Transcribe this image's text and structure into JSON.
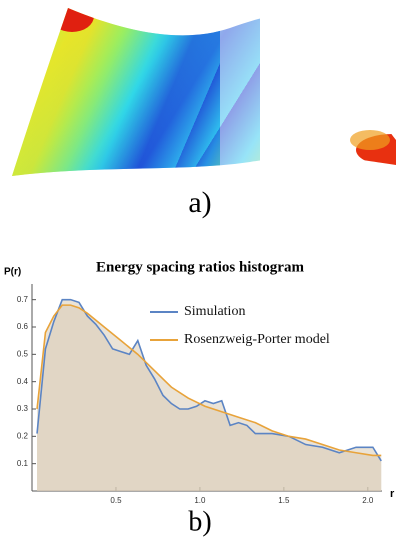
{
  "figure_a": {
    "label": "a)"
  },
  "chart_data": {
    "type": "line",
    "title": "Energy spacing ratios histogram",
    "panel_label": "b)",
    "y_label": "P(r)",
    "x_label": "r",
    "xlim": [
      0,
      2.15
    ],
    "ylim": [
      0,
      0.75
    ],
    "xticks": [
      0.5,
      {
        "value": 1,
        "label": "1.0"
      },
      1.5,
      {
        "value": 2,
        "label": "2.0"
      }
    ],
    "yticks": [
      0.1,
      0.2,
      0.3,
      0.4,
      0.5,
      0.6,
      0.7
    ],
    "legend": "upper right",
    "fill_color": "#d9ccb6",
    "series": [
      {
        "name": "Simulation",
        "color": "#5b84c4",
        "x": [
          0.03,
          0.08,
          0.13,
          0.18,
          0.23,
          0.28,
          0.33,
          0.38,
          0.43,
          0.48,
          0.53,
          0.58,
          0.63,
          0.68,
          0.73,
          0.78,
          0.83,
          0.88,
          0.93,
          0.98,
          1.03,
          1.08,
          1.13,
          1.18,
          1.23,
          1.28,
          1.33,
          1.43,
          1.53,
          1.63,
          1.73,
          1.83,
          1.93,
          2.03,
          2.08
        ],
        "values": [
          0.21,
          0.52,
          0.62,
          0.7,
          0.7,
          0.69,
          0.64,
          0.61,
          0.57,
          0.52,
          0.51,
          0.5,
          0.55,
          0.46,
          0.41,
          0.35,
          0.32,
          0.3,
          0.3,
          0.31,
          0.33,
          0.32,
          0.33,
          0.24,
          0.25,
          0.24,
          0.21,
          0.21,
          0.2,
          0.17,
          0.16,
          0.14,
          0.16,
          0.16,
          0.11
        ]
      },
      {
        "name": "Rosenzweig-Porter model",
        "color": "#e8a33a",
        "x": [
          0.03,
          0.08,
          0.13,
          0.18,
          0.23,
          0.28,
          0.33,
          0.43,
          0.53,
          0.63,
          0.73,
          0.83,
          0.93,
          1.03,
          1.13,
          1.23,
          1.33,
          1.43,
          1.53,
          1.63,
          1.73,
          1.83,
          1.93,
          2.03,
          2.08
        ],
        "values": [
          0.3,
          0.58,
          0.64,
          0.68,
          0.68,
          0.67,
          0.65,
          0.6,
          0.55,
          0.5,
          0.44,
          0.38,
          0.34,
          0.31,
          0.29,
          0.27,
          0.25,
          0.22,
          0.2,
          0.19,
          0.17,
          0.15,
          0.14,
          0.13,
          0.13
        ]
      }
    ]
  }
}
